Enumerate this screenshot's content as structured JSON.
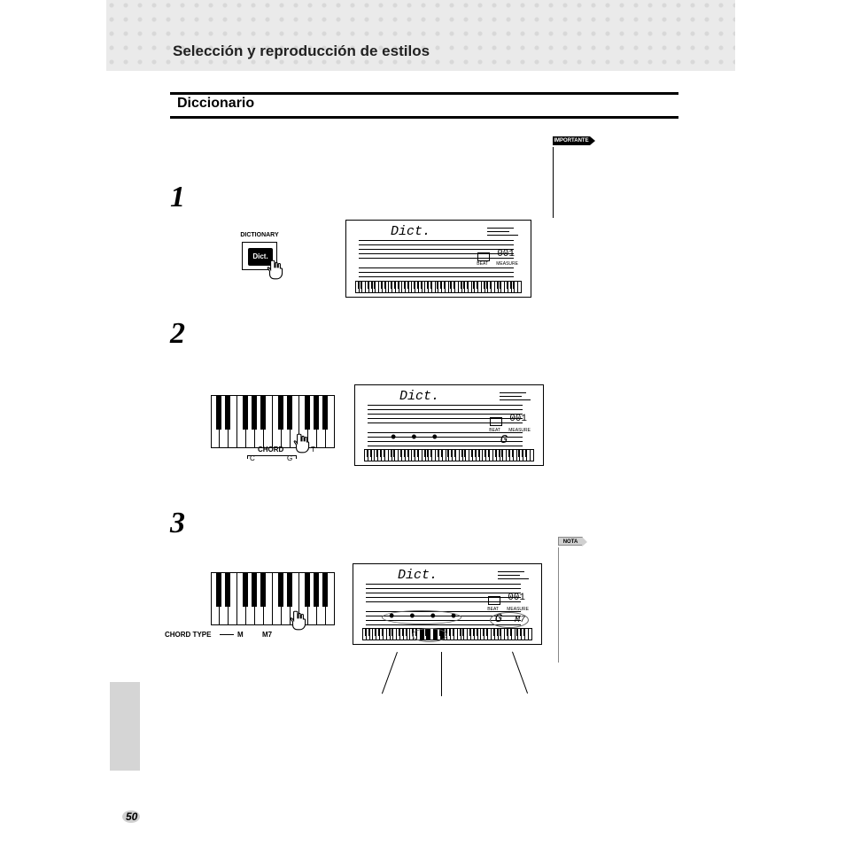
{
  "header": {
    "title": "Selección y reproducción de estilos"
  },
  "section": {
    "title": "Diccionario"
  },
  "badges": {
    "importante": "IMPORTANTE",
    "nota": "NOTA"
  },
  "steps": {
    "s1": "1",
    "s2": "2",
    "s3": "3"
  },
  "dict_button": {
    "label_top": "DICTIONARY",
    "label_btn": "Dict."
  },
  "lcd": {
    "title": "Dict.",
    "counter": "001",
    "beat_label": "BEAT",
    "measure_label": "MEASURE",
    "chord_g": "G",
    "chord_m7": "M7"
  },
  "keyboard_step2": {
    "root_label": "CHORD",
    "t_label": "T",
    "c_label": "C",
    "g_label": "G"
  },
  "keyboard_step3": {
    "type_label": "CHORD TYPE",
    "m_label": "M",
    "m7_label": "M7"
  },
  "page_number": "50",
  "colors": {
    "bg": "#ffffff",
    "text": "#000000",
    "dot_pattern": "#d8d8d8",
    "header_bg": "#eaeaea",
    "gray_tab": "#d5d5d5"
  }
}
